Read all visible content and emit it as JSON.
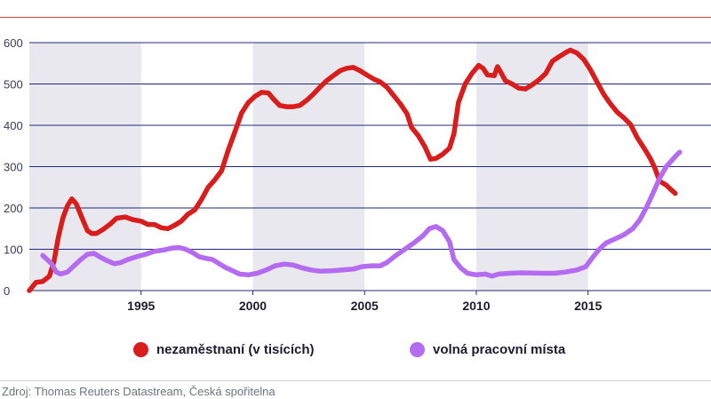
{
  "chart_data": {
    "type": "line",
    "title": "",
    "xlabel": "",
    "ylabel": "",
    "xlim": [
      1990,
      2020.5
    ],
    "ylim": [
      0,
      600
    ],
    "x_ticks": [
      "1995",
      "2000",
      "2005",
      "2010",
      "2015"
    ],
    "y_ticks": [
      "0",
      "100",
      "200",
      "300",
      "400",
      "500",
      "600"
    ],
    "grid": true,
    "shaded_periods": [
      [
        1990,
        1995
      ],
      [
        2000,
        2005
      ],
      [
        2010,
        2015
      ]
    ],
    "series": [
      {
        "name": "nezaměstnaní (v tisících)",
        "color": "#d91c1c",
        "points": [
          [
            1990.0,
            0
          ],
          [
            1990.3,
            20
          ],
          [
            1990.6,
            22
          ],
          [
            1990.9,
            35
          ],
          [
            1991.1,
            70
          ],
          [
            1991.3,
            130
          ],
          [
            1991.5,
            175
          ],
          [
            1991.7,
            205
          ],
          [
            1991.9,
            222
          ],
          [
            1992.1,
            210
          ],
          [
            1992.4,
            170
          ],
          [
            1992.6,
            145
          ],
          [
            1992.8,
            138
          ],
          [
            1993.0,
            138
          ],
          [
            1993.3,
            148
          ],
          [
            1993.6,
            160
          ],
          [
            1993.9,
            175
          ],
          [
            1994.3,
            178
          ],
          [
            1994.6,
            172
          ],
          [
            1995.0,
            168
          ],
          [
            1995.3,
            160
          ],
          [
            1995.6,
            160
          ],
          [
            1995.9,
            152
          ],
          [
            1996.2,
            150
          ],
          [
            1996.5,
            158
          ],
          [
            1996.8,
            168
          ],
          [
            1997.1,
            185
          ],
          [
            1997.4,
            195
          ],
          [
            1997.7,
            220
          ],
          [
            1998.0,
            250
          ],
          [
            1998.3,
            268
          ],
          [
            1998.6,
            290
          ],
          [
            1998.9,
            340
          ],
          [
            1999.2,
            385
          ],
          [
            1999.5,
            430
          ],
          [
            1999.8,
            455
          ],
          [
            2000.1,
            470
          ],
          [
            2000.4,
            480
          ],
          [
            2000.7,
            478
          ],
          [
            2000.9,
            465
          ],
          [
            2001.2,
            448
          ],
          [
            2001.5,
            445
          ],
          [
            2001.8,
            445
          ],
          [
            2002.1,
            448
          ],
          [
            2002.4,
            460
          ],
          [
            2002.7,
            475
          ],
          [
            2003.0,
            492
          ],
          [
            2003.3,
            508
          ],
          [
            2003.6,
            520
          ],
          [
            2003.9,
            532
          ],
          [
            2004.2,
            538
          ],
          [
            2004.5,
            540
          ],
          [
            2004.8,
            532
          ],
          [
            2005.1,
            522
          ],
          [
            2005.4,
            512
          ],
          [
            2005.7,
            505
          ],
          [
            2006.0,
            492
          ],
          [
            2006.3,
            472
          ],
          [
            2006.6,
            452
          ],
          [
            2006.9,
            428
          ],
          [
            2007.1,
            395
          ],
          [
            2007.4,
            375
          ],
          [
            2007.7,
            348
          ],
          [
            2007.95,
            318
          ],
          [
            2008.2,
            320
          ],
          [
            2008.5,
            330
          ],
          [
            2008.8,
            345
          ],
          [
            2009.0,
            380
          ],
          [
            2009.2,
            455
          ],
          [
            2009.5,
            500
          ],
          [
            2009.8,
            525
          ],
          [
            2010.1,
            545
          ],
          [
            2010.3,
            538
          ],
          [
            2010.5,
            522
          ],
          [
            2010.8,
            520
          ],
          [
            2010.95,
            542
          ],
          [
            2011.1,
            528
          ],
          [
            2011.3,
            508
          ],
          [
            2011.6,
            500
          ],
          [
            2011.9,
            490
          ],
          [
            2012.2,
            488
          ],
          [
            2012.5,
            498
          ],
          [
            2012.8,
            510
          ],
          [
            2013.1,
            525
          ],
          [
            2013.4,
            555
          ],
          [
            2013.7,
            566
          ],
          [
            2014.0,
            576
          ],
          [
            2014.2,
            582
          ],
          [
            2014.5,
            575
          ],
          [
            2014.8,
            560
          ],
          [
            2015.1,
            535
          ],
          [
            2015.4,
            505
          ],
          [
            2015.7,
            475
          ],
          [
            2016.0,
            452
          ],
          [
            2016.3,
            432
          ],
          [
            2016.6,
            418
          ],
          [
            2016.9,
            402
          ],
          [
            2017.2,
            370
          ],
          [
            2017.5,
            345
          ],
          [
            2017.8,
            318
          ],
          [
            2018.0,
            295
          ],
          [
            2018.2,
            265
          ],
          [
            2018.5,
            255
          ],
          [
            2018.7,
            245
          ],
          [
            2018.9,
            235
          ]
        ]
      },
      {
        "name": "volná pracovní místa",
        "color": "#b46bf0",
        "points": [
          [
            1990.6,
            85
          ],
          [
            1990.8,
            75
          ],
          [
            1991.0,
            65
          ],
          [
            1991.2,
            45
          ],
          [
            1991.4,
            40
          ],
          [
            1991.7,
            45
          ],
          [
            1992.0,
            60
          ],
          [
            1992.3,
            75
          ],
          [
            1992.6,
            88
          ],
          [
            1992.9,
            90
          ],
          [
            1993.2,
            80
          ],
          [
            1993.5,
            72
          ],
          [
            1993.8,
            65
          ],
          [
            1994.1,
            68
          ],
          [
            1994.4,
            75
          ],
          [
            1994.8,
            82
          ],
          [
            1995.2,
            88
          ],
          [
            1995.6,
            95
          ],
          [
            1996.0,
            98
          ],
          [
            1996.4,
            103
          ],
          [
            1996.7,
            104
          ],
          [
            1997.0,
            100
          ],
          [
            1997.3,
            92
          ],
          [
            1997.6,
            82
          ],
          [
            1997.9,
            78
          ],
          [
            1998.2,
            75
          ],
          [
            1998.5,
            65
          ],
          [
            1998.8,
            55
          ],
          [
            1999.1,
            48
          ],
          [
            1999.4,
            40
          ],
          [
            1999.8,
            38
          ],
          [
            2000.2,
            42
          ],
          [
            2000.6,
            50
          ],
          [
            2001.0,
            60
          ],
          [
            2001.4,
            64
          ],
          [
            2001.8,
            62
          ],
          [
            2002.2,
            55
          ],
          [
            2002.6,
            50
          ],
          [
            2003.0,
            47
          ],
          [
            2003.5,
            48
          ],
          [
            2004.0,
            50
          ],
          [
            2004.5,
            52
          ],
          [
            2004.9,
            58
          ],
          [
            2005.3,
            60
          ],
          [
            2005.7,
            60
          ],
          [
            2006.0,
            68
          ],
          [
            2006.4,
            85
          ],
          [
            2006.8,
            100
          ],
          [
            2007.2,
            115
          ],
          [
            2007.6,
            132
          ],
          [
            2007.9,
            150
          ],
          [
            2008.2,
            155
          ],
          [
            2008.5,
            145
          ],
          [
            2008.8,
            118
          ],
          [
            2009.0,
            75
          ],
          [
            2009.3,
            55
          ],
          [
            2009.6,
            42
          ],
          [
            2010.0,
            38
          ],
          [
            2010.4,
            40
          ],
          [
            2010.7,
            35
          ],
          [
            2011.0,
            40
          ],
          [
            2011.5,
            42
          ],
          [
            2012.0,
            43
          ],
          [
            2013.0,
            42
          ],
          [
            2013.5,
            42
          ],
          [
            2014.0,
            45
          ],
          [
            2014.5,
            50
          ],
          [
            2014.9,
            58
          ],
          [
            2015.2,
            80
          ],
          [
            2015.5,
            100
          ],
          [
            2015.8,
            115
          ],
          [
            2016.2,
            125
          ],
          [
            2016.6,
            135
          ],
          [
            2017.0,
            150
          ],
          [
            2017.3,
            170
          ],
          [
            2017.6,
            200
          ],
          [
            2017.9,
            235
          ],
          [
            2018.2,
            272
          ],
          [
            2018.5,
            300
          ],
          [
            2018.8,
            318
          ],
          [
            2019.0,
            330
          ],
          [
            2019.1,
            335
          ]
        ]
      }
    ]
  },
  "legend": {
    "unemployed_label": "nezaměstnaní (v tisících)",
    "vacancies_label": "volná pracovní místa"
  },
  "source": "Zdroj: Thomas Reuters Datastream, Česká spořitelna"
}
